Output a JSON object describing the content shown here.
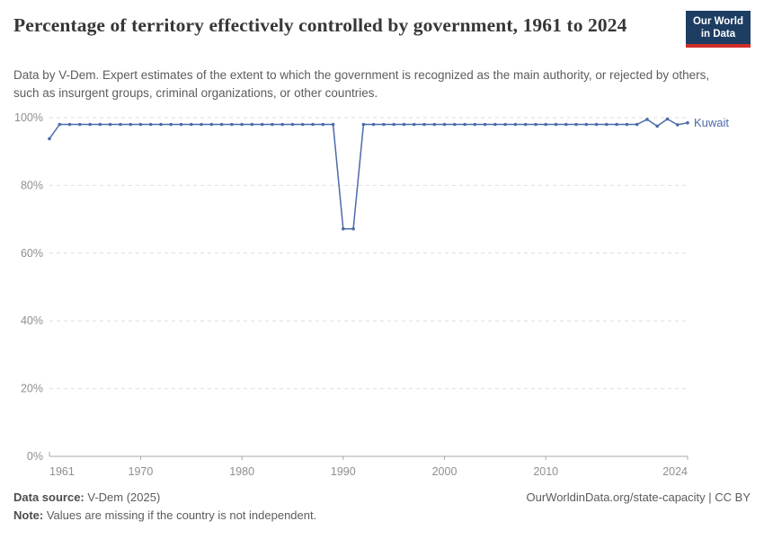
{
  "header": {
    "title": "Percentage of territory effectively controlled by government, 1961 to 2024",
    "subtitle": "Data by V-Dem. Expert estimates of the extent to which the government is recognized as the main authority, or rejected by others, such as insurgent groups, criminal organizations, or other countries.",
    "logo": {
      "line1": "Our World",
      "line2": "in Data",
      "bg_color": "#1d3d63",
      "accent_color": "#cf2d27"
    }
  },
  "chart_data": {
    "type": "line",
    "title": "Percentage of territory effectively controlled by government, 1961 to 2024",
    "xlabel": "",
    "ylabel": "",
    "xlim": [
      1961,
      2024
    ],
    "ylim": [
      0,
      100
    ],
    "x_ticks": [
      1961,
      1970,
      1980,
      1990,
      2000,
      2010,
      2024
    ],
    "y_ticks": [
      "0%",
      "20%",
      "40%",
      "60%",
      "80%",
      "100%"
    ],
    "grid": "horizontal-dashed",
    "legend_position": "end-of-line",
    "series": [
      {
        "name": "Kuwait",
        "color": "#4c6ba9",
        "points": [
          [
            1961,
            93.8
          ],
          [
            1962,
            98
          ],
          [
            1963,
            98
          ],
          [
            1964,
            98
          ],
          [
            1965,
            98
          ],
          [
            1966,
            98
          ],
          [
            1967,
            98
          ],
          [
            1968,
            98
          ],
          [
            1969,
            98
          ],
          [
            1970,
            98
          ],
          [
            1971,
            98
          ],
          [
            1972,
            98
          ],
          [
            1973,
            98
          ],
          [
            1974,
            98
          ],
          [
            1975,
            98
          ],
          [
            1976,
            98
          ],
          [
            1977,
            98
          ],
          [
            1978,
            98
          ],
          [
            1979,
            98
          ],
          [
            1980,
            98
          ],
          [
            1981,
            98
          ],
          [
            1982,
            98
          ],
          [
            1983,
            98
          ],
          [
            1984,
            98
          ],
          [
            1985,
            98
          ],
          [
            1986,
            98
          ],
          [
            1987,
            98
          ],
          [
            1988,
            98
          ],
          [
            1989,
            98
          ],
          [
            1990,
            67.2
          ],
          [
            1991,
            67.2
          ],
          [
            1992,
            98
          ],
          [
            1993,
            98
          ],
          [
            1994,
            98
          ],
          [
            1995,
            98
          ],
          [
            1996,
            98
          ],
          [
            1997,
            98
          ],
          [
            1998,
            98
          ],
          [
            1999,
            98
          ],
          [
            2000,
            98
          ],
          [
            2001,
            98
          ],
          [
            2002,
            98
          ],
          [
            2003,
            98
          ],
          [
            2004,
            98
          ],
          [
            2005,
            98
          ],
          [
            2006,
            98
          ],
          [
            2007,
            98
          ],
          [
            2008,
            98
          ],
          [
            2009,
            98
          ],
          [
            2010,
            98
          ],
          [
            2011,
            98
          ],
          [
            2012,
            98
          ],
          [
            2013,
            98
          ],
          [
            2014,
            98
          ],
          [
            2015,
            98
          ],
          [
            2016,
            98
          ],
          [
            2017,
            98
          ],
          [
            2018,
            98
          ],
          [
            2019,
            98
          ],
          [
            2020,
            99.5
          ],
          [
            2021,
            97.5
          ],
          [
            2022,
            99.6
          ],
          [
            2023,
            97.9
          ],
          [
            2024,
            98.5
          ]
        ]
      }
    ]
  },
  "footer": {
    "source_label": "Data source:",
    "source_value": " V-Dem (2025)",
    "note_label": "Note:",
    "note_value": " Values are missing if the country is not independent.",
    "link": "OurWorldinData.org/state-capacity | CC BY"
  }
}
